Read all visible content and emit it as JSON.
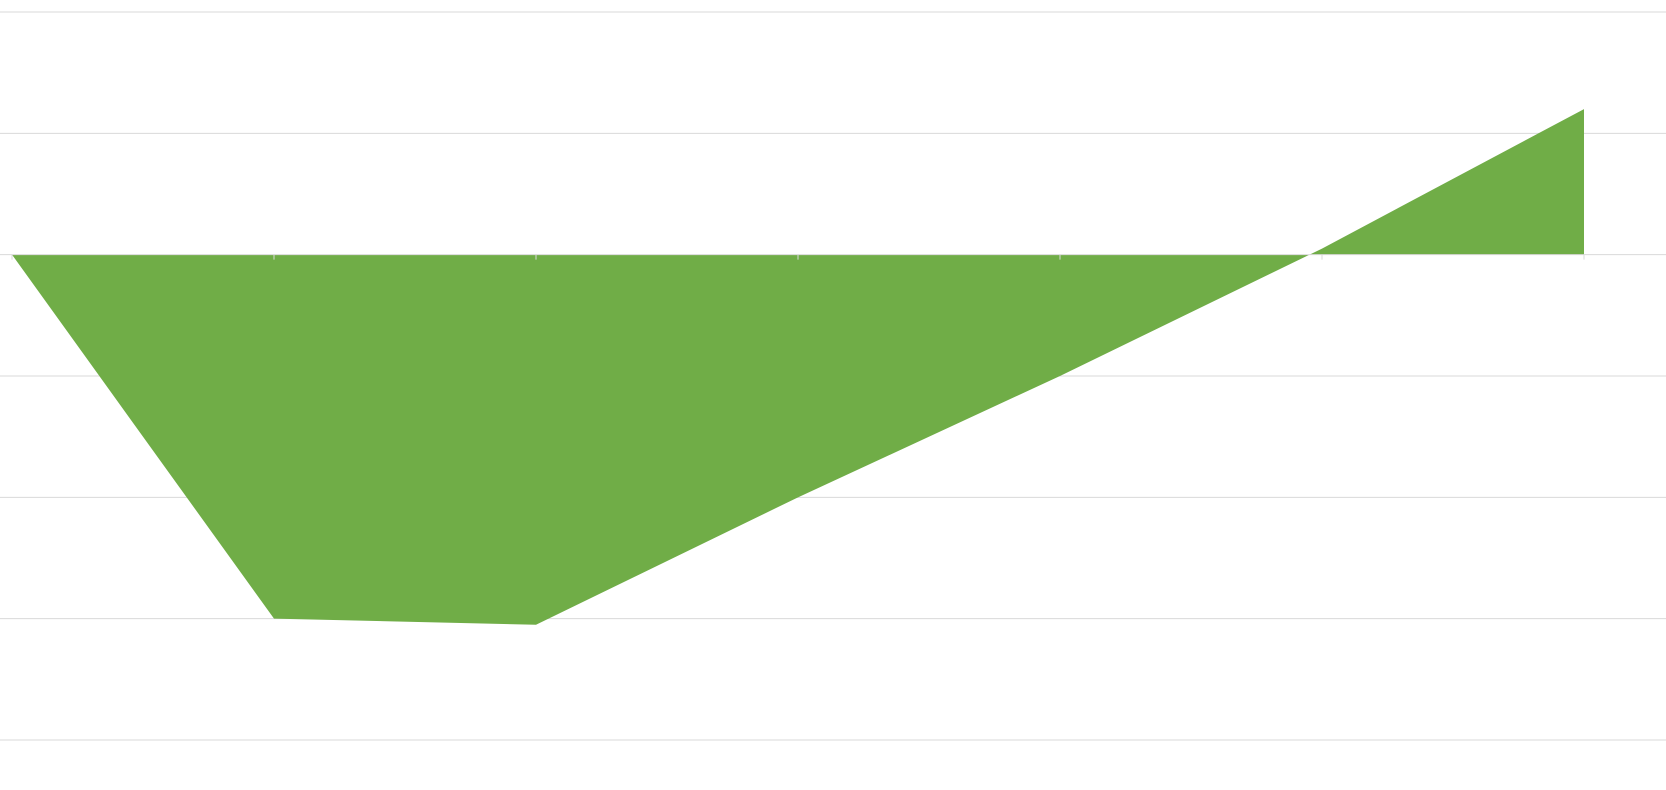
{
  "chart_data": {
    "type": "area",
    "title": "",
    "xlabel": "",
    "ylabel": "",
    "x": [
      0,
      1,
      2,
      3,
      4,
      5,
      6
    ],
    "values": [
      0,
      -3,
      -3.05,
      -2.0,
      -1.0,
      0.05,
      1.2
    ],
    "ylim": [
      -4,
      2
    ],
    "grid": true,
    "legend": "none",
    "colors": {
      "fill": "#70AD47",
      "grid": "#d9d9d9",
      "axis": "#d9d9d9"
    }
  }
}
